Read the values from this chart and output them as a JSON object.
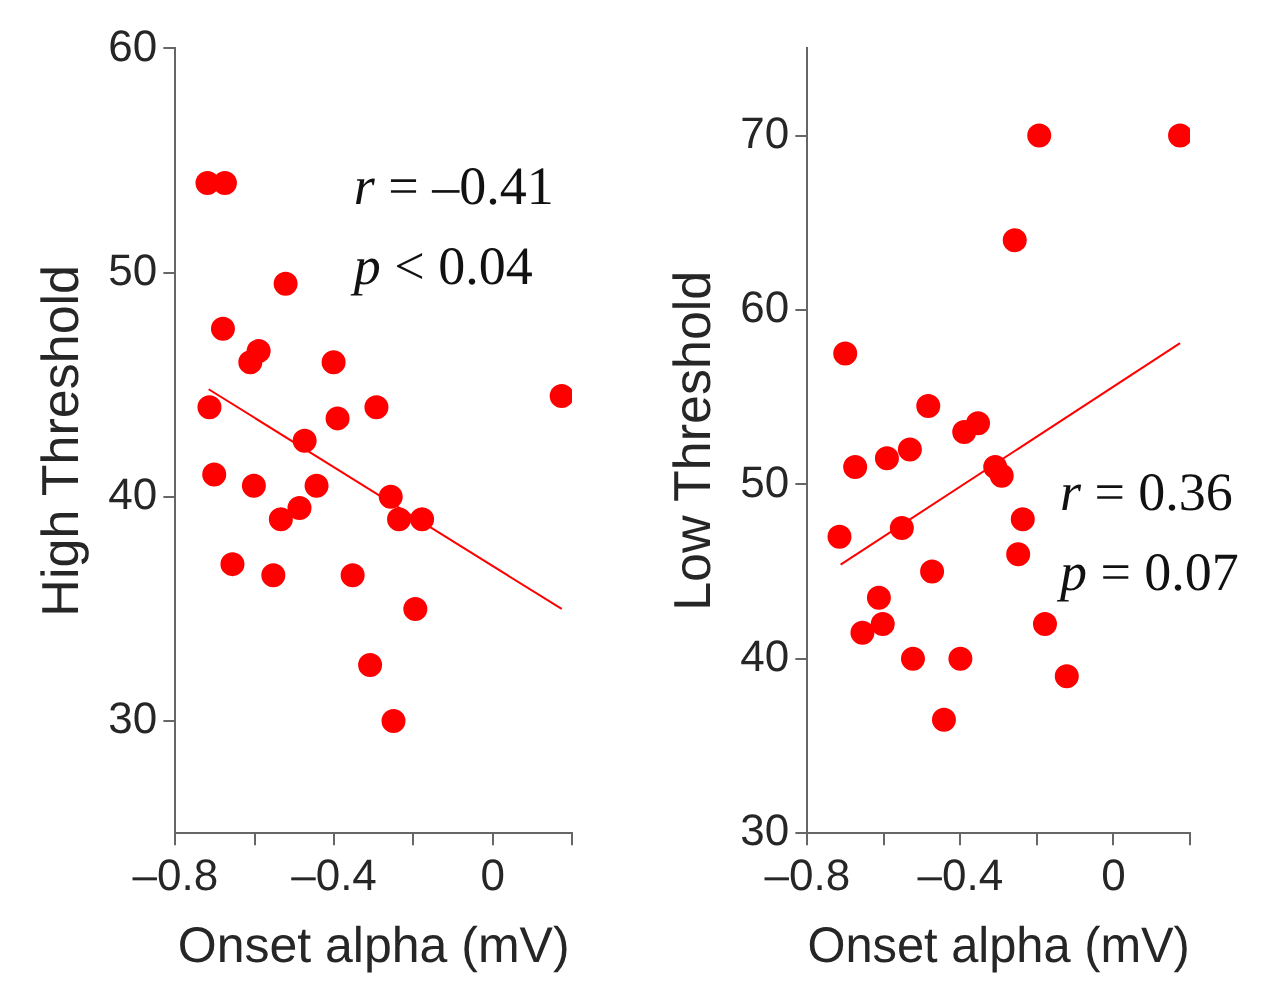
{
  "chart_data": [
    {
      "type": "scatter",
      "xlabel": "Onset alpha (mV)",
      "ylabel": "High Threshold",
      "xlim": [
        -0.8,
        0.2
      ],
      "ylim": [
        25,
        60
      ],
      "xticks": [
        {
          "value": -0.8,
          "label": "–0.8"
        },
        {
          "value": -0.6,
          "label": null
        },
        {
          "value": -0.4,
          "label": "–0.4"
        },
        {
          "value": -0.2,
          "label": null
        },
        {
          "value": 0,
          "label": "0"
        },
        {
          "value": 0.2,
          "label": null
        }
      ],
      "yticks": [
        30,
        40,
        50,
        60
      ],
      "grid": false,
      "legend": false,
      "marker": "circle",
      "annotations": [
        "r = –0.41",
        "p < 0.04"
      ],
      "series": [
        {
          "type": "scatter",
          "color": "#ff0000",
          "x": [
            -0.719,
            -0.675,
            -0.522,
            -0.68,
            -0.59,
            -0.611,
            -0.401,
            -0.714,
            -0.293,
            0.174,
            -0.391,
            -0.474,
            -0.702,
            -0.602,
            -0.444,
            -0.257,
            -0.487,
            -0.534,
            -0.236,
            -0.178,
            -0.656,
            -0.553,
            -0.353,
            -0.195,
            -0.309,
            -0.25
          ],
          "values": [
            54,
            54,
            49.5,
            47.5,
            46.5,
            46,
            46,
            44,
            44,
            44.5,
            43.5,
            42.5,
            41,
            40.5,
            40.5,
            40,
            39.5,
            39,
            39,
            39,
            37,
            36.5,
            36.5,
            35,
            32.5,
            30
          ]
        },
        {
          "type": "line",
          "color": "#ff0000",
          "marker": "none",
          "x": [
            -0.716,
            0.174
          ],
          "values": [
            44.8,
            35
          ]
        }
      ]
    },
    {
      "type": "scatter",
      "xlabel": "Onset alpha (mV)",
      "ylabel": "Low Threshold",
      "xlim": [
        -0.8,
        0.2
      ],
      "ylim": [
        30,
        75
      ],
      "xticks": [
        {
          "value": -0.8,
          "label": "–0.8"
        },
        {
          "value": -0.6,
          "label": null
        },
        {
          "value": -0.4,
          "label": "–0.4"
        },
        {
          "value": -0.2,
          "label": null
        },
        {
          "value": 0,
          "label": "0"
        },
        {
          "value": 0.2,
          "label": null
        }
      ],
      "yticks": [
        30,
        40,
        50,
        60,
        70
      ],
      "grid": false,
      "legend": false,
      "marker": "circle",
      "annotations": [
        "r = 0.36",
        "p = 0.07"
      ],
      "series": [
        {
          "type": "scatter",
          "color": "#ff0000",
          "x": [
            -0.194,
            0.174,
            -0.258,
            -0.701,
            -0.484,
            -0.354,
            -0.39,
            -0.532,
            -0.592,
            -0.675,
            -0.309,
            -0.292,
            -0.237,
            -0.716,
            -0.553,
            -0.249,
            -0.474,
            -0.613,
            -0.603,
            -0.179,
            -0.656,
            -0.524,
            -0.4,
            -0.122,
            -0.443
          ],
          "values": [
            70,
            70,
            64,
            57.5,
            54.5,
            53.5,
            53,
            52,
            51.5,
            51,
            51,
            50.5,
            48,
            47,
            47.5,
            46,
            45,
            43.5,
            42,
            42,
            41.5,
            40,
            40,
            39,
            36.5
          ]
        },
        {
          "type": "line",
          "color": "#ff0000",
          "marker": "none",
          "x": [
            -0.713,
            0.174
          ],
          "values": [
            45.4,
            58.1
          ]
        }
      ]
    }
  ]
}
